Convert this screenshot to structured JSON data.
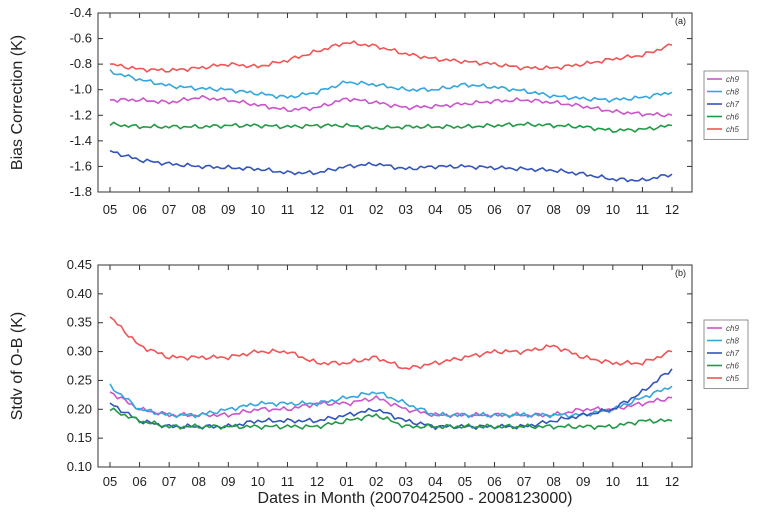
{
  "xlabel": "Dates in Month (2007042500 - 2008123000)",
  "chart_data": [
    {
      "type": "line",
      "panel": "(a)",
      "ylabel": "Bias Correction (K)",
      "ylim": [
        -1.8,
        -0.4
      ],
      "yticks": [
        -0.4,
        -0.6,
        -0.8,
        -1.0,
        -1.2,
        -1.4,
        -1.6,
        -1.8
      ],
      "ytick_labels": [
        "-0.4",
        "-0.6",
        "-0.8",
        "-1.0",
        "-1.2",
        "-1.4",
        "-1.6",
        "-1.8"
      ],
      "x_tick_labels": [
        "05",
        "06",
        "07",
        "08",
        "09",
        "10",
        "11",
        "12",
        "01",
        "02",
        "03",
        "04",
        "05",
        "06",
        "07",
        "08",
        "09",
        "10",
        "11",
        "12"
      ],
      "legend_placement": "right",
      "grid": false,
      "series": [
        {
          "name": "ch9",
          "color": "#cc55cc",
          "values": [
            -1.08,
            -1.08,
            -1.1,
            -1.06,
            -1.08,
            -1.12,
            -1.16,
            -1.14,
            -1.07,
            -1.1,
            -1.14,
            -1.13,
            -1.11,
            -1.09,
            -1.08,
            -1.1,
            -1.13,
            -1.17,
            -1.19,
            -1.2
          ]
        },
        {
          "name": "ch8",
          "color": "#33a6dd",
          "values": [
            -0.86,
            -0.92,
            -0.97,
            -0.99,
            -1.0,
            -1.03,
            -1.06,
            -1.02,
            -0.94,
            -0.96,
            -1.0,
            -1.0,
            -0.96,
            -0.98,
            -1.01,
            -1.05,
            -1.07,
            -1.08,
            -1.06,
            -1.02
          ]
        },
        {
          "name": "ch7",
          "color": "#3355bb",
          "values": [
            -1.48,
            -1.55,
            -1.58,
            -1.6,
            -1.61,
            -1.62,
            -1.65,
            -1.65,
            -1.6,
            -1.58,
            -1.62,
            -1.6,
            -1.6,
            -1.61,
            -1.62,
            -1.63,
            -1.66,
            -1.7,
            -1.71,
            -1.66
          ]
        },
        {
          "name": "ch6",
          "color": "#229944",
          "values": [
            -1.27,
            -1.29,
            -1.29,
            -1.29,
            -1.28,
            -1.28,
            -1.29,
            -1.28,
            -1.28,
            -1.3,
            -1.29,
            -1.29,
            -1.29,
            -1.28,
            -1.27,
            -1.28,
            -1.29,
            -1.32,
            -1.31,
            -1.28
          ]
        },
        {
          "name": "ch5",
          "color": "#ee5555",
          "values": [
            -0.8,
            -0.84,
            -0.85,
            -0.83,
            -0.8,
            -0.82,
            -0.77,
            -0.7,
            -0.63,
            -0.66,
            -0.72,
            -0.76,
            -0.78,
            -0.8,
            -0.83,
            -0.83,
            -0.8,
            -0.76,
            -0.73,
            -0.65
          ]
        }
      ]
    },
    {
      "type": "line",
      "panel": "(b)",
      "ylabel": "Stdv of O-B (K)",
      "ylim": [
        0.1,
        0.45
      ],
      "yticks": [
        0.45,
        0.4,
        0.35,
        0.3,
        0.25,
        0.2,
        0.15,
        0.1
      ],
      "ytick_labels": [
        "0.45",
        "0.40",
        "0.35",
        "0.30",
        "0.25",
        "0.20",
        "0.15",
        "0.10"
      ],
      "x_tick_labels": [
        "05",
        "06",
        "07",
        "08",
        "09",
        "10",
        "11",
        "12",
        "01",
        "02",
        "03",
        "04",
        "05",
        "06",
        "07",
        "08",
        "09",
        "10",
        "11",
        "12"
      ],
      "legend_placement": "right",
      "grid": false,
      "series": [
        {
          "name": "ch9",
          "color": "#cc55cc",
          "values": [
            0.23,
            0.2,
            0.19,
            0.19,
            0.19,
            0.2,
            0.2,
            0.21,
            0.21,
            0.22,
            0.2,
            0.19,
            0.19,
            0.19,
            0.19,
            0.19,
            0.2,
            0.2,
            0.21,
            0.22
          ]
        },
        {
          "name": "ch8",
          "color": "#33a6dd",
          "values": [
            0.24,
            0.2,
            0.19,
            0.19,
            0.2,
            0.21,
            0.21,
            0.21,
            0.22,
            0.23,
            0.21,
            0.19,
            0.19,
            0.19,
            0.19,
            0.19,
            0.19,
            0.2,
            0.22,
            0.24
          ]
        },
        {
          "name": "ch7",
          "color": "#3355bb",
          "values": [
            0.21,
            0.18,
            0.17,
            0.17,
            0.17,
            0.18,
            0.18,
            0.18,
            0.19,
            0.2,
            0.18,
            0.17,
            0.17,
            0.17,
            0.17,
            0.18,
            0.19,
            0.2,
            0.23,
            0.27
          ]
        },
        {
          "name": "ch6",
          "color": "#229944",
          "values": [
            0.2,
            0.18,
            0.17,
            0.17,
            0.17,
            0.17,
            0.17,
            0.17,
            0.18,
            0.19,
            0.17,
            0.17,
            0.17,
            0.17,
            0.17,
            0.17,
            0.17,
            0.17,
            0.18,
            0.18
          ]
        },
        {
          "name": "ch5",
          "color": "#ee5555",
          "values": [
            0.36,
            0.31,
            0.29,
            0.29,
            0.29,
            0.3,
            0.3,
            0.28,
            0.28,
            0.29,
            0.27,
            0.28,
            0.29,
            0.3,
            0.3,
            0.31,
            0.29,
            0.28,
            0.28,
            0.3
          ]
        }
      ]
    }
  ]
}
